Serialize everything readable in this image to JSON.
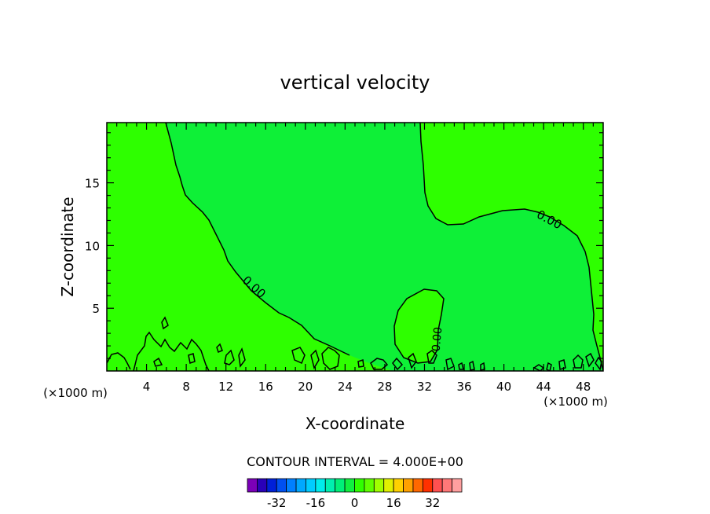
{
  "chart_data": {
    "type": "contour",
    "title": "vertical velocity",
    "xlabel": "X-coordinate",
    "ylabel": "Z-coordinate",
    "x_unit": "(×1000 m)",
    "x_unit_right": "(×1000 m)",
    "xlim": [
      0,
      50
    ],
    "ylim": [
      0,
      19.8
    ],
    "x_ticks": [
      4,
      8,
      12,
      16,
      20,
      24,
      28,
      32,
      36,
      40,
      44,
      48
    ],
    "y_ticks": [
      5,
      10,
      15
    ],
    "contour_interval_text": "CONTOUR INTERVAL = 4.000E+00",
    "contour_labels": [
      {
        "text": "0.00",
        "x": 14.6,
        "y": 6.7
      },
      {
        "text": "0.00",
        "x": 44.8,
        "y": 12.2
      },
      {
        "text": "0.00",
        "x": 33.0,
        "y": 2.6
      }
    ],
    "colorbar": {
      "colors": [
        "#7b00b8",
        "#2a00b8",
        "#0020d8",
        "#0050f0",
        "#0080ff",
        "#00a8ff",
        "#00ccff",
        "#00ecec",
        "#00f0b0",
        "#00f078",
        "#10f040",
        "#30ff00",
        "#60ff00",
        "#a0ff00",
        "#e0f000",
        "#ffd000",
        "#ffa000",
        "#ff6800",
        "#ff3000",
        "#ff5050",
        "#ff7878",
        "#ffa0a0"
      ],
      "tick_labels": [
        "-32",
        "-16",
        "0",
        "16",
        "32"
      ],
      "tick_values": [
        -32,
        -16,
        0,
        16,
        32
      ],
      "range": [
        -44,
        44
      ]
    },
    "regions": {
      "positive_color": "#2eff00",
      "negative_color": "#0ef037"
    }
  }
}
